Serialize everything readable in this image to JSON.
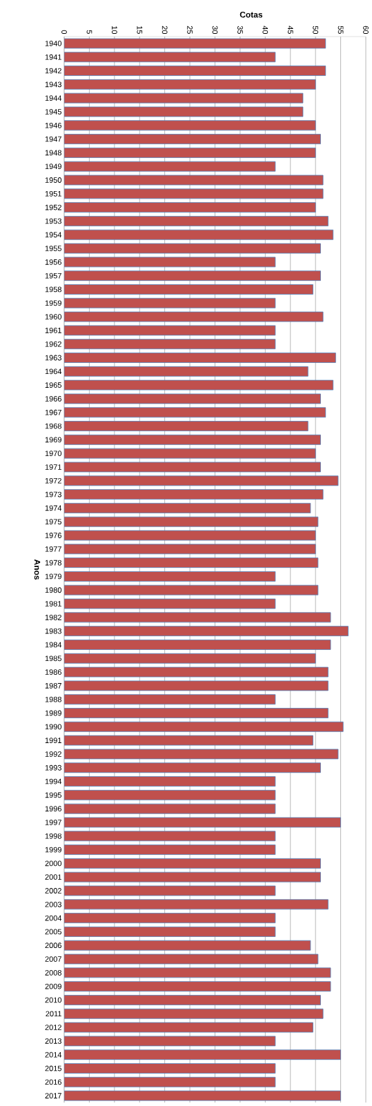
{
  "chart_data": {
    "type": "bar",
    "orientation": "horizontal",
    "xlabel": "Cotas",
    "ylabel": "Anos",
    "categories": [
      "1940",
      "1941",
      "1942",
      "1943",
      "1944",
      "1945",
      "1946",
      "1947",
      "1948",
      "1949",
      "1950",
      "1951",
      "1952",
      "1953",
      "1954",
      "1955",
      "1956",
      "1957",
      "1958",
      "1959",
      "1960",
      "1961",
      "1962",
      "1963",
      "1964",
      "1965",
      "1966",
      "1967",
      "1968",
      "1969",
      "1970",
      "1971",
      "1972",
      "1973",
      "1974",
      "1975",
      "1976",
      "1977",
      "1978",
      "1979",
      "1980",
      "1981",
      "1982",
      "1983",
      "1984",
      "1985",
      "1986",
      "1987",
      "1988",
      "1989",
      "1990",
      "1991",
      "1992",
      "1993",
      "1994",
      "1995",
      "1996",
      "1997",
      "1998",
      "1999",
      "2000",
      "2001",
      "2002",
      "2003",
      "2004",
      "2005",
      "2006",
      "2007",
      "2008",
      "2009",
      "2010",
      "2011",
      "2012",
      "2013",
      "2014",
      "2015",
      "2016",
      "2017"
    ],
    "values": [
      52,
      42,
      52,
      50,
      47.5,
      47.5,
      50,
      51,
      50,
      42,
      51.5,
      51.5,
      50,
      52.5,
      53.5,
      51,
      42,
      51,
      49.5,
      42,
      51.5,
      42,
      42,
      54,
      48.5,
      53.5,
      51,
      52,
      48.5,
      51,
      50,
      51,
      54.5,
      51.5,
      49,
      50.5,
      50,
      50,
      50.5,
      42,
      50.5,
      42,
      53,
      56.5,
      53,
      50,
      52.5,
      52.5,
      42,
      52.5,
      55.5,
      49.5,
      54.5,
      51,
      42,
      42,
      42,
      55,
      42,
      42,
      51,
      51,
      42,
      52.5,
      42,
      42,
      49,
      50.5,
      53,
      53,
      51,
      51.5,
      49.5,
      42,
      55,
      42,
      42,
      55
    ],
    "color": "#c0504d",
    "xlim": [
      0,
      60
    ],
    "xticks": [
      0,
      5,
      10,
      15,
      20,
      25,
      30,
      35,
      40,
      45,
      50,
      55,
      60
    ],
    "grid": "x"
  }
}
